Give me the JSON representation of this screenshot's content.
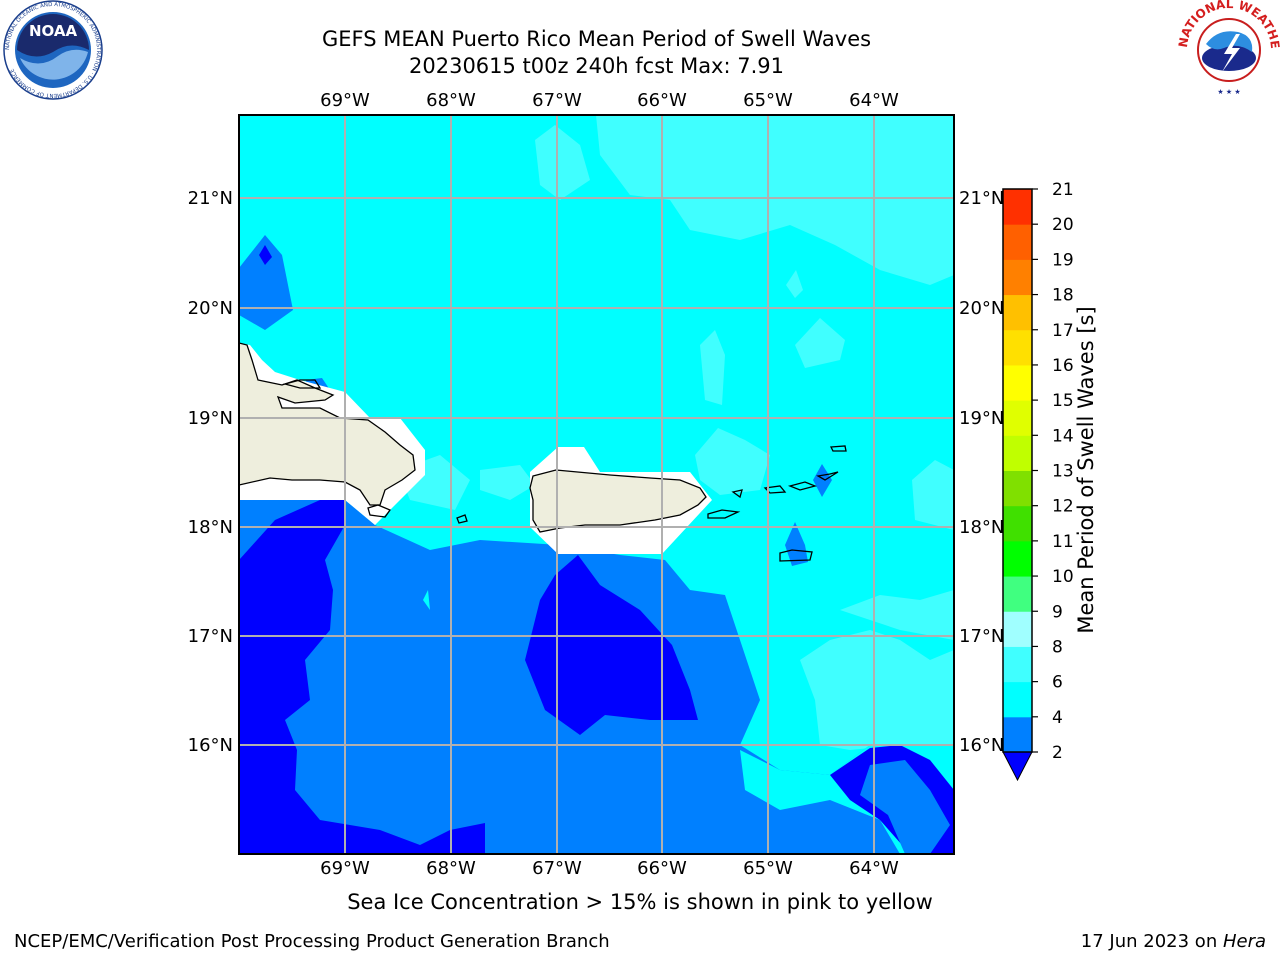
{
  "header": {
    "title_line1": "GEFS MEAN Puerto Rico Mean Period of Swell Waves",
    "title_line2": "20230615 t00z 240h fcst   Max: 7.91"
  },
  "map": {
    "lon_labels": [
      "69°W",
      "68°W",
      "67°W",
      "66°W",
      "65°W",
      "64°W"
    ],
    "lat_labels": [
      "21°N",
      "20°N",
      "19°N",
      "18°N",
      "17°N",
      "16°N"
    ],
    "land_color": "#eeeedd",
    "ocean_colors": {
      "2-4": "#0080ff",
      "4-6": "#00ffff",
      "6-8": "#40ffff",
      "lt2": "#0000ff"
    }
  },
  "colorbar": {
    "label": "Mean Period of Swell Waves [s]",
    "ticks": [
      "2",
      "4",
      "6",
      "8",
      "9",
      "10",
      "11",
      "12",
      "13",
      "14",
      "15",
      "16",
      "17",
      "18",
      "19",
      "20",
      "21"
    ],
    "colors": [
      "#0080ff",
      "#00ffff",
      "#40ffff",
      "#a0ffff",
      "#40ff80",
      "#00ff00",
      "#40e000",
      "#80e000",
      "#c0ff00",
      "#e0ff00",
      "#ffff00",
      "#ffe000",
      "#ffc000",
      "#ff8000",
      "#ff6000",
      "#ff3000"
    ],
    "extend_color": "#0000ff"
  },
  "subtitle": "Sea Ice Concentration > 15% is shown in pink to yellow",
  "footer": {
    "left": "NCEP/EMC/Verification Post Processing Product Generation Branch",
    "date": "17 Jun 2023 on ",
    "machine": "Hera"
  },
  "logos": {
    "noaa_text": "NOAA",
    "noaa_ring": "NATIONAL OCEANIC AND ATMOSPHERIC ADMINISTRATION · U.S. DEPARTMENT OF COMMERCE",
    "nws_ring": "NATIONAL WEATHER SERVICE"
  }
}
